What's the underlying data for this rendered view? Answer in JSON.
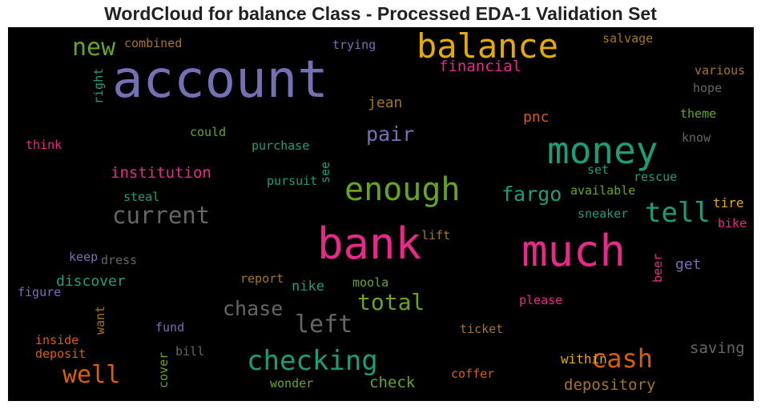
{
  "chart_data": {
    "type": "wordcloud",
    "title": "WordCloud for balance Class - Processed EDA-1 Validation Set",
    "words": [
      {
        "text": "account",
        "weight": 1.0,
        "color": "#7570b3"
      },
      {
        "text": "bank",
        "weight": 0.85,
        "color": "#e7298a"
      },
      {
        "text": "much",
        "weight": 0.78,
        "color": "#e7298a"
      },
      {
        "text": "money",
        "weight": 0.72,
        "color": "#1b9e77"
      },
      {
        "text": "balance",
        "weight": 0.68,
        "color": "#e6ab02"
      },
      {
        "text": "enough",
        "weight": 0.62,
        "color": "#66a61e"
      },
      {
        "text": "tell",
        "weight": 0.55,
        "color": "#1b9e77"
      },
      {
        "text": "checking",
        "weight": 0.55,
        "color": "#1b9e77"
      },
      {
        "text": "cash",
        "weight": 0.53,
        "color": "#d95f02"
      },
      {
        "text": "well",
        "weight": 0.5,
        "color": "#d95f02"
      },
      {
        "text": "left",
        "weight": 0.48,
        "color": "#666666"
      },
      {
        "text": "current",
        "weight": 0.47,
        "color": "#666666"
      },
      {
        "text": "total",
        "weight": 0.46,
        "color": "#66a61e"
      },
      {
        "text": "new",
        "weight": 0.45,
        "color": "#66a61e"
      },
      {
        "text": "chase",
        "weight": 0.42,
        "color": "#666666"
      },
      {
        "text": "pair",
        "weight": 0.4,
        "color": "#7570b3"
      },
      {
        "text": "fargo",
        "weight": 0.39,
        "color": "#1b9e77"
      },
      {
        "text": "depository",
        "weight": 0.33,
        "color": "#a6761d"
      },
      {
        "text": "institution",
        "weight": 0.33,
        "color": "#e7298a"
      },
      {
        "text": "financial",
        "weight": 0.33,
        "color": "#e7298a"
      },
      {
        "text": "saving",
        "weight": 0.32,
        "color": "#666666"
      },
      {
        "text": "check",
        "weight": 0.31,
        "color": "#66a61e"
      },
      {
        "text": "discover",
        "weight": 0.31,
        "color": "#1b9e77"
      },
      {
        "text": "jean",
        "weight": 0.3,
        "color": "#a6761d"
      },
      {
        "text": "pnc",
        "weight": 0.3,
        "color": "#d95f02"
      },
      {
        "text": "get",
        "weight": 0.29,
        "color": "#7570b3"
      },
      {
        "text": "nike",
        "weight": 0.28,
        "color": "#1b9e77"
      },
      {
        "text": "within",
        "weight": 0.26,
        "color": "#e6ab02"
      },
      {
        "text": "right",
        "weight": 0.24,
        "color": "#1b9e77"
      },
      {
        "text": "combined",
        "weight": 0.24,
        "color": "#a6761d"
      },
      {
        "text": "trying",
        "weight": 0.24,
        "color": "#7570b3"
      },
      {
        "text": "salvage",
        "weight": 0.24,
        "color": "#a6761d"
      },
      {
        "text": "various",
        "weight": 0.24,
        "color": "#a6761d"
      },
      {
        "text": "hope",
        "weight": 0.22,
        "color": "#666666"
      },
      {
        "text": "theme",
        "weight": 0.23,
        "color": "#66a61e"
      },
      {
        "text": "know",
        "weight": 0.22,
        "color": "#666666"
      },
      {
        "text": "think",
        "weight": 0.23,
        "color": "#e7298a"
      },
      {
        "text": "could",
        "weight": 0.23,
        "color": "#66a61e"
      },
      {
        "text": "purchase",
        "weight": 0.23,
        "color": "#1b9e77"
      },
      {
        "text": "see",
        "weight": 0.22,
        "color": "#1b9e77"
      },
      {
        "text": "set",
        "weight": 0.22,
        "color": "#1b9e77"
      },
      {
        "text": "rescue",
        "weight": 0.23,
        "color": "#1b9e77"
      },
      {
        "text": "pursuit",
        "weight": 0.23,
        "color": "#1b9e77"
      },
      {
        "text": "available",
        "weight": 0.23,
        "color": "#66a61e"
      },
      {
        "text": "steal",
        "weight": 0.23,
        "color": "#1b9e77"
      },
      {
        "text": "tire",
        "weight": 0.24,
        "color": "#e6ab02"
      },
      {
        "text": "sneaker",
        "weight": 0.23,
        "color": "#1b9e77"
      },
      {
        "text": "bike",
        "weight": 0.23,
        "color": "#e7298a"
      },
      {
        "text": "lift",
        "weight": 0.23,
        "color": "#a6761d"
      },
      {
        "text": "keep",
        "weight": 0.22,
        "color": "#7570b3"
      },
      {
        "text": "dress",
        "weight": 0.22,
        "color": "#666666"
      },
      {
        "text": "beer",
        "weight": 0.23,
        "color": "#e7298a"
      },
      {
        "text": "report",
        "weight": 0.23,
        "color": "#a6761d"
      },
      {
        "text": "moola",
        "weight": 0.23,
        "color": "#66a61e"
      },
      {
        "text": "figure",
        "weight": 0.23,
        "color": "#7570b3"
      },
      {
        "text": "please",
        "weight": 0.23,
        "color": "#e7298a"
      },
      {
        "text": "want",
        "weight": 0.22,
        "color": "#a6761d"
      },
      {
        "text": "fund",
        "weight": 0.23,
        "color": "#7570b3"
      },
      {
        "text": "ticket",
        "weight": 0.23,
        "color": "#a6761d"
      },
      {
        "text": "inside",
        "weight": 0.23,
        "color": "#d95f02"
      },
      {
        "text": "bill",
        "weight": 0.23,
        "color": "#666666"
      },
      {
        "text": "deposit",
        "weight": 0.23,
        "color": "#d95f02"
      },
      {
        "text": "cover",
        "weight": 0.22,
        "color": "#66a61e"
      },
      {
        "text": "coffer",
        "weight": 0.23,
        "color": "#d95f02"
      },
      {
        "text": "wonder",
        "weight": 0.23,
        "color": "#66a61e"
      }
    ]
  }
}
